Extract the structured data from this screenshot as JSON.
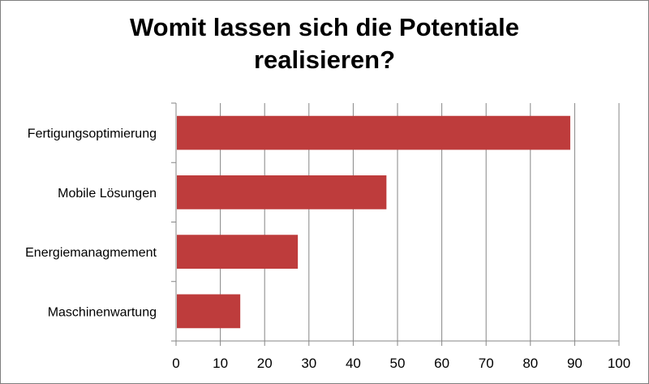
{
  "chart_data": {
    "type": "bar",
    "orientation": "horizontal",
    "title": "Womit lassen sich die Potentiale realisieren?",
    "title_lines": [
      "Womit lassen sich die Potentiale",
      "realisieren?"
    ],
    "categories": [
      "Fertigungsoptimierung",
      "Mobile Lösungen",
      "Energiemanagmement",
      "Maschinenwartung"
    ],
    "series": [
      {
        "values": [
          89,
          47.5,
          27.5,
          14.5
        ],
        "color": "#be3c3c"
      }
    ],
    "xlabel": "",
    "ylabel": "",
    "xlim": [
      0,
      100
    ],
    "x_ticks": [
      "0",
      "10",
      "20",
      "30",
      "40",
      "50",
      "60",
      "70",
      "80",
      "90",
      "100"
    ],
    "grid": "vertical",
    "legend": "none"
  }
}
